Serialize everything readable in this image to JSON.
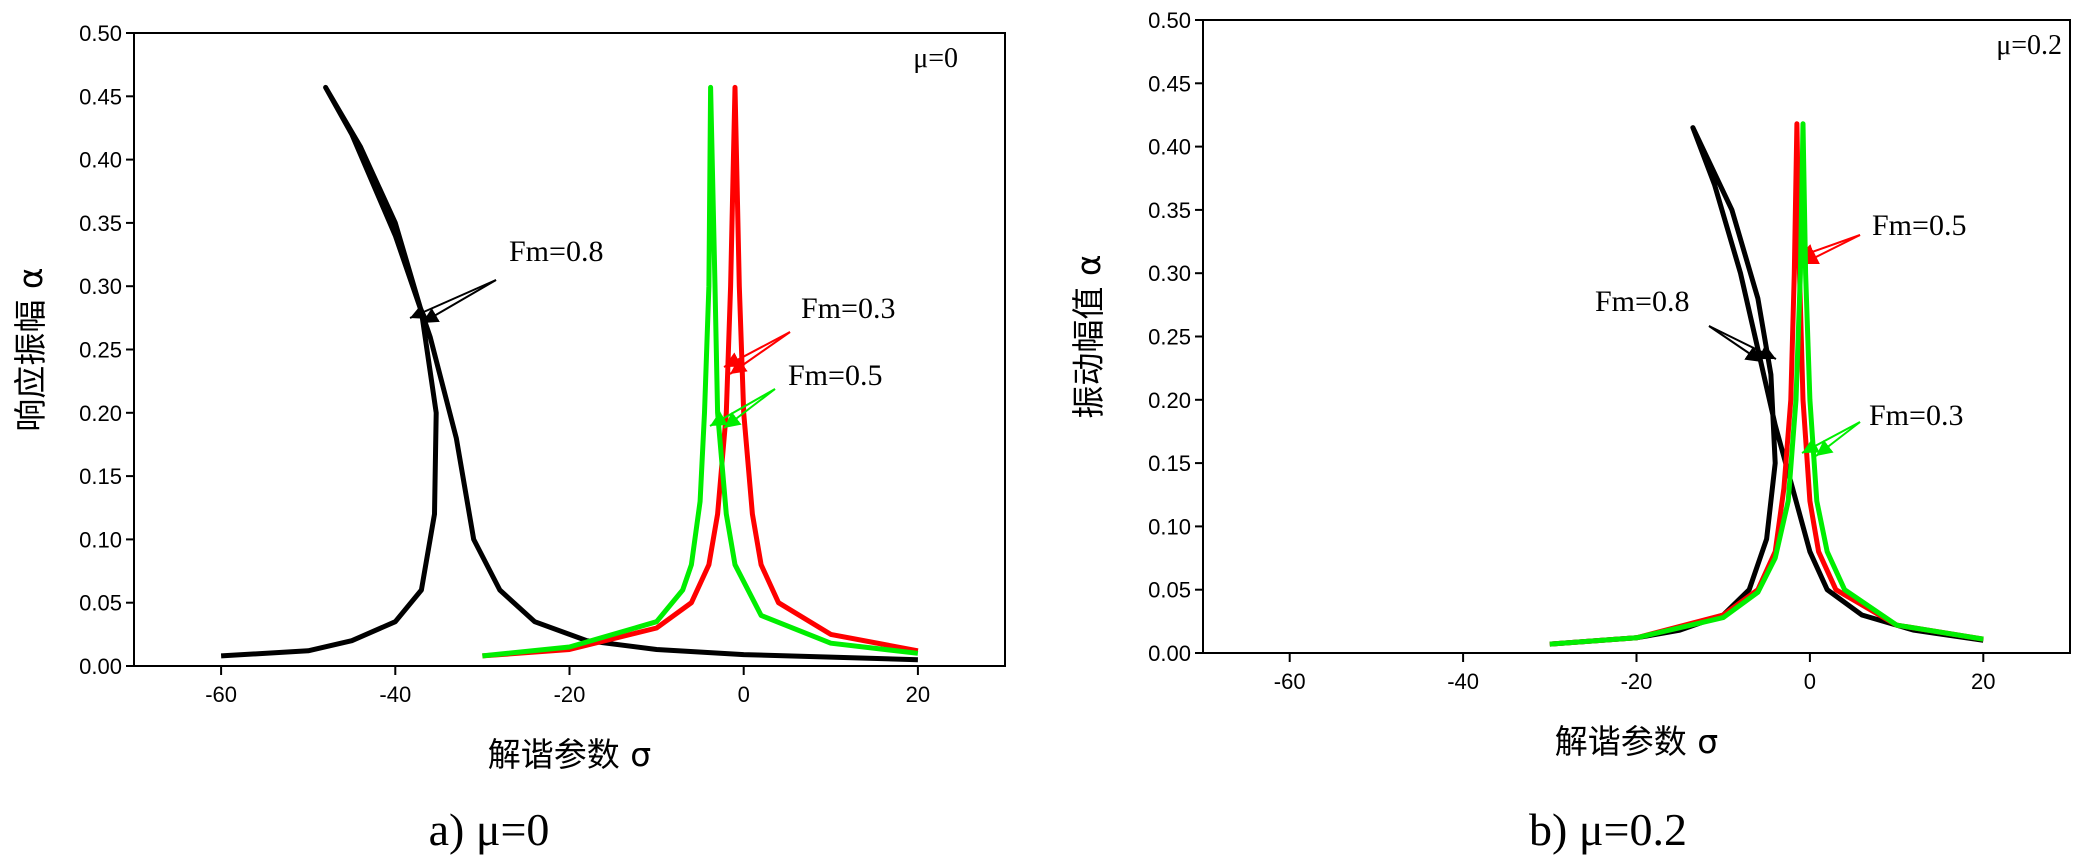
{
  "chart_data": [
    {
      "type": "line",
      "annotation": "μ=0",
      "caption": "a)  μ=0",
      "xlabel": "解谐参数  σ",
      "ylabel": "响应振幅  α",
      "xlim": [
        -70,
        30
      ],
      "ylim": [
        0,
        0.5
      ],
      "xticks": [
        -60,
        -40,
        -20,
        0,
        20
      ],
      "yticks": [
        {
          "value": 0,
          "label": "0.00"
        },
        0.05,
        {
          "value": 0.1,
          "label": "0.10"
        },
        0.15,
        {
          "value": 0.2,
          "label": "0.20"
        },
        0.25,
        {
          "value": 0.3,
          "label": "0.30"
        },
        0.35,
        {
          "value": 0.4,
          "label": "0.40"
        },
        0.45,
        {
          "value": 0.5,
          "label": "0.50"
        }
      ],
      "series": [
        {
          "name": "Fm=0.8",
          "color": "#000000",
          "x": [
            -60,
            -50,
            -45,
            -40,
            -37,
            -35.5,
            -35.3,
            -37,
            -40,
            -44,
            -48,
            -45,
            -40,
            -36,
            -33,
            -31,
            -28,
            -24,
            -18,
            -10,
            0,
            10,
            20
          ],
          "values": [
            0.008,
            0.012,
            0.02,
            0.035,
            0.06,
            0.12,
            0.2,
            0.28,
            0.35,
            0.41,
            0.457,
            0.42,
            0.34,
            0.26,
            0.18,
            0.1,
            0.06,
            0.035,
            0.02,
            0.013,
            0.009,
            0.007,
            0.005
          ]
        },
        {
          "name": "Fm=0.3",
          "color": "#ff0000",
          "x": [
            -30,
            -20,
            -10,
            -6,
            -4,
            -3,
            -2,
            -1.5,
            -1,
            -0.5,
            0,
            1,
            2,
            4,
            10,
            20
          ],
          "values": [
            0.008,
            0.013,
            0.03,
            0.05,
            0.08,
            0.12,
            0.2,
            0.3,
            0.457,
            0.3,
            0.2,
            0.12,
            0.08,
            0.05,
            0.025,
            0.012
          ]
        },
        {
          "name": "Fm=0.5",
          "color": "#00ee00",
          "x": [
            -30,
            -20,
            -10,
            -7,
            -6,
            -5,
            -4.5,
            -4,
            -3.8,
            -3.3,
            -3,
            -2,
            -1,
            2,
            10,
            20
          ],
          "values": [
            0.008,
            0.015,
            0.035,
            0.06,
            0.08,
            0.13,
            0.2,
            0.3,
            0.457,
            0.3,
            0.2,
            0.12,
            0.08,
            0.04,
            0.018,
            0.01
          ]
        }
      ]
    },
    {
      "type": "line",
      "annotation": "μ=0.2",
      "caption": "b)  μ=0.2",
      "xlabel": "解谐参数  σ",
      "ylabel": "振动幅值  α",
      "xlim": [
        -70,
        30
      ],
      "ylim": [
        0,
        0.5
      ],
      "xticks": [
        -60,
        -40,
        -20,
        0,
        20
      ],
      "yticks": [
        {
          "value": 0,
          "label": "0.00"
        },
        0.05,
        {
          "value": 0.1,
          "label": "0.10"
        },
        0.15,
        {
          "value": 0.2,
          "label": "0.20"
        },
        0.25,
        {
          "value": 0.3,
          "label": "0.30"
        },
        0.35,
        {
          "value": 0.4,
          "label": "0.40"
        },
        0.45,
        {
          "value": 0.5,
          "label": "0.50"
        }
      ],
      "series": [
        {
          "name": "Fm=0.8",
          "color": "#000000",
          "x": [
            -30,
            -20,
            -15,
            -10,
            -7,
            -5,
            -4,
            -4.5,
            -6,
            -9,
            -13.5,
            -11,
            -8,
            -6,
            -4,
            -2,
            0,
            2,
            6,
            12,
            20
          ],
          "values": [
            0.007,
            0.012,
            0.018,
            0.03,
            0.05,
            0.09,
            0.15,
            0.22,
            0.28,
            0.35,
            0.415,
            0.37,
            0.3,
            0.24,
            0.18,
            0.13,
            0.08,
            0.05,
            0.03,
            0.018,
            0.01
          ]
        },
        {
          "name": "Fm=0.5",
          "color": "#ff0000",
          "x": [
            -30,
            -20,
            -10,
            -6,
            -4,
            -3,
            -2.2,
            -1.8,
            -1.5,
            -1.2,
            -0.8,
            0,
            1,
            3,
            10,
            20
          ],
          "values": [
            0.007,
            0.012,
            0.03,
            0.05,
            0.08,
            0.13,
            0.2,
            0.3,
            0.418,
            0.3,
            0.2,
            0.12,
            0.08,
            0.05,
            0.022,
            0.011
          ]
        },
        {
          "name": "Fm=0.3",
          "color": "#00ee00",
          "x": [
            -30,
            -20,
            -10,
            -6,
            -4,
            -2.5,
            -1.6,
            -1.1,
            -0.8,
            -0.5,
            0,
            0.8,
            2,
            4,
            10,
            20
          ],
          "values": [
            0.007,
            0.012,
            0.028,
            0.048,
            0.075,
            0.12,
            0.2,
            0.3,
            0.418,
            0.3,
            0.2,
            0.12,
            0.08,
            0.05,
            0.022,
            0.011
          ]
        }
      ]
    }
  ]
}
